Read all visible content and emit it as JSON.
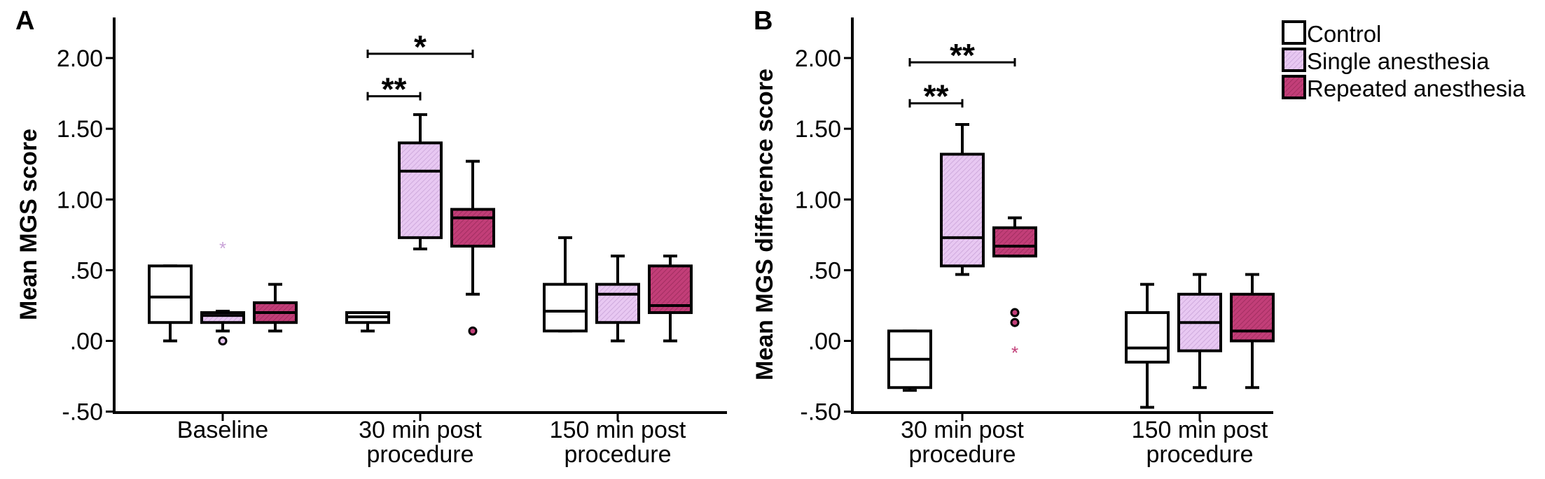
{
  "colors": {
    "control": "#ffffff",
    "single": "#e8c8f2",
    "single_hatch": "#c9a3d8",
    "repeated": "#c23e78",
    "repeated_hatch": "#9b2b5c",
    "line": "#000000"
  },
  "legend": {
    "items": [
      {
        "label": "Control",
        "color_key": "control"
      },
      {
        "label": "Single anesthesia",
        "color_key": "single"
      },
      {
        "label": "Repeated anesthesia",
        "color_key": "repeated"
      }
    ]
  },
  "chart_data": [
    {
      "type": "box",
      "panel": "A",
      "ylabel": "Mean MGS score",
      "ylim": [
        -0.5,
        2.2
      ],
      "yticks": [
        -0.5,
        0.0,
        0.5,
        1.0,
        1.5,
        2.0
      ],
      "ytick_labels": [
        "-.50",
        ".00",
        ".50",
        "1.00",
        "1.50",
        "2.00"
      ],
      "groups": [
        {
          "label_lines": [
            "Baseline"
          ],
          "boxes": [
            {
              "series": "control",
              "whisker_low": 0.0,
              "q1": 0.13,
              "median": 0.31,
              "q3": 0.53,
              "whisker_high": 0.53,
              "outliers": [],
              "extremes": []
            },
            {
              "series": "single",
              "whisker_low": 0.07,
              "q1": 0.13,
              "median": 0.18,
              "q3": 0.2,
              "whisker_high": 0.21,
              "outliers": [
                0.0
              ],
              "extremes": [
                0.67
              ]
            },
            {
              "series": "repeated",
              "whisker_low": 0.07,
              "q1": 0.13,
              "median": 0.2,
              "q3": 0.27,
              "whisker_high": 0.4,
              "outliers": [],
              "extremes": []
            }
          ]
        },
        {
          "label_lines": [
            "30 min post",
            "procedure"
          ],
          "boxes": [
            {
              "series": "control",
              "whisker_low": 0.07,
              "q1": 0.13,
              "median": 0.17,
              "q3": 0.2,
              "whisker_high": 0.2,
              "outliers": [],
              "extremes": []
            },
            {
              "series": "single",
              "whisker_low": 0.65,
              "q1": 0.73,
              "median": 1.2,
              "q3": 1.4,
              "whisker_high": 1.6,
              "outliers": [],
              "extremes": []
            },
            {
              "series": "repeated",
              "whisker_low": 0.33,
              "q1": 0.67,
              "median": 0.87,
              "q3": 0.93,
              "whisker_high": 1.27,
              "outliers": [
                0.07
              ],
              "extremes": []
            }
          ]
        },
        {
          "label_lines": [
            "150 min post",
            "procedure"
          ],
          "boxes": [
            {
              "series": "control",
              "whisker_low": 0.07,
              "q1": 0.07,
              "median": 0.21,
              "q3": 0.4,
              "whisker_high": 0.73,
              "outliers": [],
              "extremes": []
            },
            {
              "series": "single",
              "whisker_low": 0.0,
              "q1": 0.13,
              "median": 0.33,
              "q3": 0.4,
              "whisker_high": 0.6,
              "outliers": [],
              "extremes": []
            },
            {
              "series": "repeated",
              "whisker_low": 0.0,
              "q1": 0.2,
              "median": 0.25,
              "q3": 0.53,
              "whisker_high": 0.6,
              "outliers": [],
              "extremes": []
            }
          ]
        }
      ],
      "significance": [
        {
          "label": "**",
          "group": 1,
          "from_box": 0,
          "to_box": 1,
          "y": 1.73
        },
        {
          "label": "*",
          "group": 1,
          "from_box": 0,
          "to_box": 2,
          "y": 2.03
        }
      ]
    },
    {
      "type": "box",
      "panel": "B",
      "ylabel": "Mean MGS difference score",
      "ylim": [
        -0.5,
        2.2
      ],
      "yticks": [
        -0.5,
        0.0,
        0.5,
        1.0,
        1.5,
        2.0
      ],
      "ytick_labels": [
        "-.50",
        ".00",
        ".50",
        "1.00",
        "1.50",
        "2.00"
      ],
      "groups": [
        {
          "label_lines": [
            "30 min post",
            "procedure"
          ],
          "boxes": [
            {
              "series": "control",
              "whisker_low": -0.35,
              "q1": -0.33,
              "median": -0.13,
              "q3": 0.07,
              "whisker_high": 0.07,
              "outliers": [],
              "extremes": []
            },
            {
              "series": "single",
              "whisker_low": 0.47,
              "q1": 0.53,
              "median": 0.73,
              "q3": 1.32,
              "whisker_high": 1.53,
              "outliers": [],
              "extremes": []
            },
            {
              "series": "repeated",
              "whisker_low": 0.6,
              "q1": 0.6,
              "median": 0.67,
              "q3": 0.8,
              "whisker_high": 0.87,
              "outliers": [
                0.2,
                0.13
              ],
              "extremes": [
                -0.07
              ]
            }
          ]
        },
        {
          "label_lines": [
            "150 min post",
            "procedure"
          ],
          "boxes": [
            {
              "series": "control",
              "whisker_low": -0.47,
              "q1": -0.15,
              "median": -0.05,
              "q3": 0.2,
              "whisker_high": 0.4,
              "outliers": [],
              "extremes": []
            },
            {
              "series": "single",
              "whisker_low": -0.33,
              "q1": -0.07,
              "median": 0.13,
              "q3": 0.33,
              "whisker_high": 0.47,
              "outliers": [],
              "extremes": []
            },
            {
              "series": "repeated",
              "whisker_low": -0.33,
              "q1": 0.0,
              "median": 0.07,
              "q3": 0.33,
              "whisker_high": 0.47,
              "outliers": [],
              "extremes": []
            }
          ]
        }
      ],
      "significance": [
        {
          "label": "**",
          "group": 0,
          "from_box": 0,
          "to_box": 1,
          "y": 1.68
        },
        {
          "label": "**",
          "group": 0,
          "from_box": 0,
          "to_box": 2,
          "y": 1.97
        }
      ]
    }
  ]
}
